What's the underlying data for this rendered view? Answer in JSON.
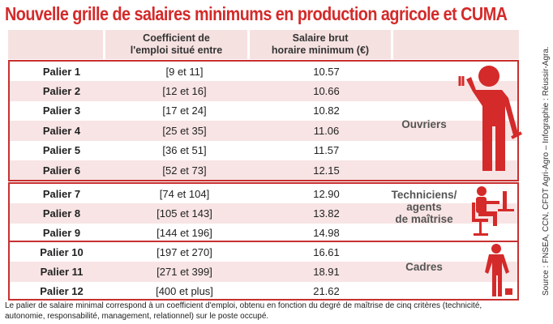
{
  "title": "Nouvelle grille de salaires minimums en production agricole et CUMA",
  "headers": {
    "coef": "Coefficient de",
    "coef2": "l'emploi situé entre",
    "salary": "Salaire brut",
    "salary2": "horaire minimum (€)"
  },
  "rows": [
    {
      "palier": "Palier 1",
      "coef": "[9 et 11]",
      "salary": "10.57"
    },
    {
      "palier": "Palier 2",
      "coef": "[12 et 16]",
      "salary": "10.66"
    },
    {
      "palier": "Palier 3",
      "coef": "[17 et 24]",
      "salary": "10.82"
    },
    {
      "palier": "Palier 4",
      "coef": "[25 et 35]",
      "salary": "11.06"
    },
    {
      "palier": "Palier 5",
      "coef": "[36 et 51]",
      "salary": "11.57"
    },
    {
      "palier": "Palier 6",
      "coef": "[52 et 73]",
      "salary": "12.15"
    },
    {
      "palier": "Palier 7",
      "coef": "[74 et 104]",
      "salary": "12.90"
    },
    {
      "palier": "Palier 8",
      "coef": "[105 et 143]",
      "salary": "13.82"
    },
    {
      "palier": "Palier 9",
      "coef": "[144 et 196]",
      "salary": "14.98"
    },
    {
      "palier": "Palier 10",
      "coef": "[197 et 270]",
      "salary": "16.61"
    },
    {
      "palier": "Palier 11",
      "coef": "[271 et 399]",
      "salary": "18.91"
    },
    {
      "palier": "Palier 12",
      "coef": "[400 et plus]",
      "salary": "21.62"
    }
  ],
  "categories": {
    "ouvriers": "Ouvriers",
    "tech1": "Techniciens/",
    "tech2": "agents",
    "tech3": "de maîtrise",
    "cadres": "Cadres"
  },
  "footnote": "Le palier de salaire minimal correspond à un coefficient d'emploi, obtenu en fonction du degré de maîtrise de cinq critères (technicité, autonomie, responsabilité, management, relationnel) sur le poste occupé.",
  "source": "Source : FNSEA, CCN, CFDT Agri-Agro – Infographie : Réussir-Agra.",
  "colors": {
    "accent": "#d42a2a",
    "stripe": "#f8e4e4"
  }
}
